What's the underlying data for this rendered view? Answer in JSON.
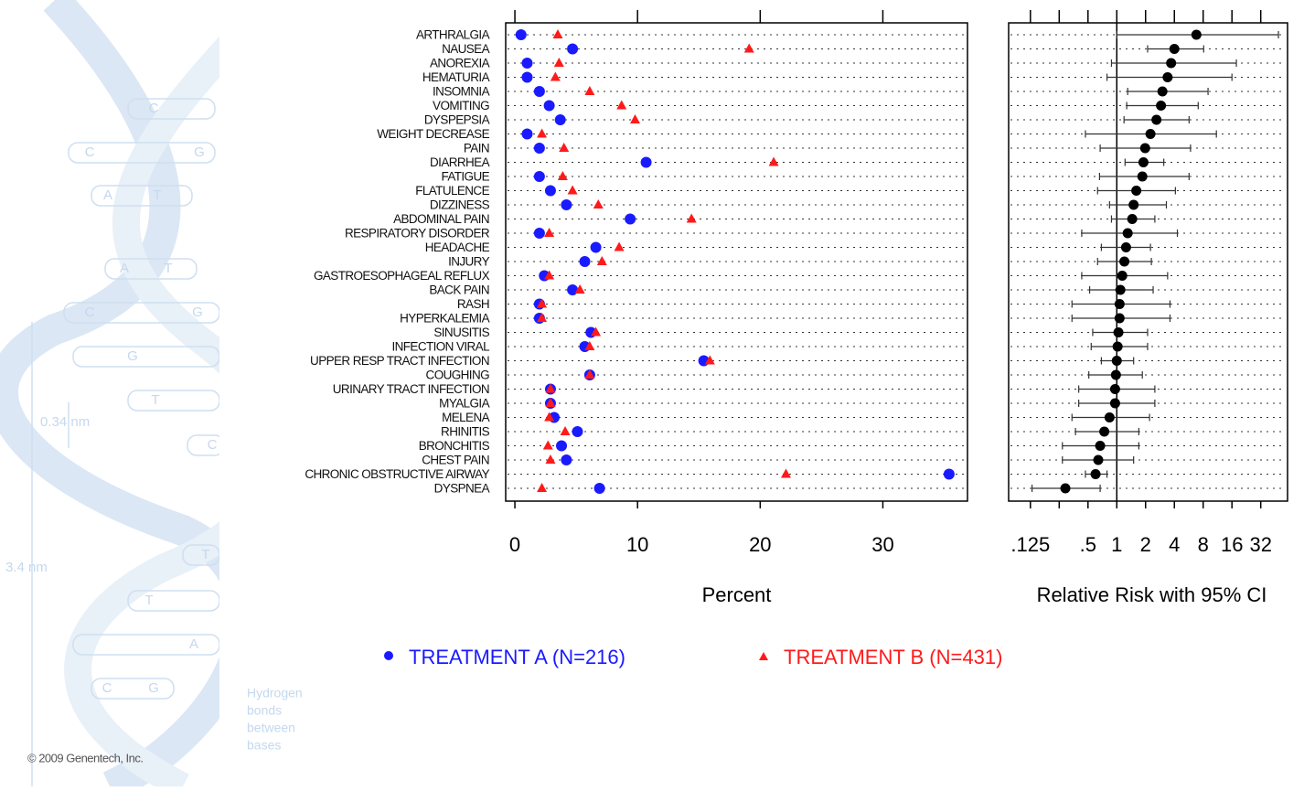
{
  "background": {
    "bases": [
      "C",
      "C",
      "G",
      "A",
      "T",
      "A",
      "T",
      "C",
      "G",
      "G",
      "T",
      "C",
      "T",
      "T",
      "A",
      "C",
      "G"
    ],
    "distance_short": "0.34 nm",
    "distance_long": "3.4 nm",
    "note": [
      "Hydrogen",
      "bonds",
      "between",
      "bases"
    ],
    "copyright": "© 2009 Genentech, Inc."
  },
  "chart_data": [
    {
      "type": "dot",
      "categories": [
        "ARTHRALGIA",
        "NAUSEA",
        "ANOREXIA",
        "HEMATURIA",
        "INSOMNIA",
        "VOMITING",
        "DYSPEPSIA",
        "WEIGHT DECREASE",
        "PAIN",
        "DIARRHEA",
        "FATIGUE",
        "FLATULENCE",
        "DIZZINESS",
        "ABDOMINAL PAIN",
        "RESPIRATORY DISORDER",
        "HEADACHE",
        "INJURY",
        "GASTROESOPHAGEAL REFLUX",
        "BACK PAIN",
        "RASH",
        "HYPERKALEMIA",
        "SINUSITIS",
        "INFECTION VIRAL",
        "UPPER RESP TRACT INFECTION",
        "COUGHING",
        "URINARY TRACT INFECTION",
        "MYALGIA",
        "MELENA",
        "RHINITIS",
        "BRONCHITIS",
        "CHEST PAIN",
        "CHRONIC OBSTRUCTIVE AIRWAY",
        "DYSPNEA"
      ],
      "series": [
        {
          "name": "TREATMENT A (N=216)",
          "color": "#1a1aff",
          "marker": "circle",
          "values": [
            0.5,
            4.7,
            1.0,
            1.0,
            2.0,
            2.8,
            3.7,
            1.0,
            2.0,
            10.7,
            2.0,
            2.9,
            4.2,
            9.4,
            2.0,
            6.6,
            5.7,
            2.4,
            4.7,
            2.0,
            2.0,
            6.2,
            5.7,
            15.4,
            6.1,
            2.9,
            2.9,
            3.2,
            5.1,
            3.8,
            4.2,
            35.4,
            6.9
          ]
        },
        {
          "name": "TREATMENT B (N=431)",
          "color": "#ff1a1a",
          "marker": "triangle",
          "values": [
            3.5,
            19.1,
            3.6,
            3.3,
            6.1,
            8.7,
            9.8,
            2.2,
            4.0,
            21.1,
            3.9,
            4.7,
            6.8,
            14.4,
            2.8,
            8.5,
            7.1,
            2.8,
            5.3,
            2.2,
            2.2,
            6.6,
            6.1,
            15.9,
            6.1,
            2.9,
            2.9,
            2.8,
            4.1,
            2.7,
            2.9,
            22.1,
            2.2
          ]
        }
      ],
      "xlabel": "Percent",
      "xlim": [
        -0.75,
        36.9
      ],
      "xticks": [
        0,
        10,
        20,
        30
      ],
      "row_guides": true
    },
    {
      "type": "forest",
      "estimate": [
        6.8,
        4.0,
        3.7,
        3.4,
        3.0,
        2.9,
        2.6,
        2.25,
        1.98,
        1.9,
        1.85,
        1.6,
        1.5,
        1.45,
        1.3,
        1.25,
        1.2,
        1.14,
        1.09,
        1.07,
        1.07,
        1.04,
        1.02,
        1.0,
        0.98,
        0.96,
        0.96,
        0.84,
        0.74,
        0.67,
        0.64,
        0.6,
        0.29
      ],
      "lower": [
        1.0,
        2.1,
        0.88,
        0.79,
        1.3,
        1.27,
        1.19,
        0.47,
        0.67,
        1.22,
        0.66,
        0.63,
        0.84,
        0.88,
        0.43,
        0.69,
        0.63,
        0.43,
        0.52,
        0.34,
        0.34,
        0.56,
        0.54,
        0.69,
        0.51,
        0.4,
        0.4,
        0.34,
        0.37,
        0.27,
        0.27,
        0.47,
        0.13
      ],
      "upper": [
        49,
        8.1,
        17.8,
        16,
        9.0,
        7.1,
        5.7,
        11,
        5.9,
        3.1,
        5.7,
        4.1,
        3.3,
        2.5,
        4.3,
        2.25,
        2.3,
        3.4,
        2.4,
        3.6,
        3.6,
        2.1,
        2.1,
        1.5,
        1.85,
        2.5,
        2.5,
        2.2,
        1.7,
        1.7,
        1.5,
        0.79,
        0.67
      ],
      "color": "#000000",
      "xlabel": "Relative Risk with 95% CI",
      "log_scale": true,
      "xlim": [
        0.074,
        61
      ],
      "xticks": [
        {
          "value": 0.125,
          "label": ".125"
        },
        {
          "value": 0.5,
          "label": ".5"
        },
        1,
        2,
        4,
        8,
        16,
        32
      ],
      "minor_xticks": [
        0.25
      ],
      "reference_line": 1,
      "row_guides": true
    }
  ]
}
